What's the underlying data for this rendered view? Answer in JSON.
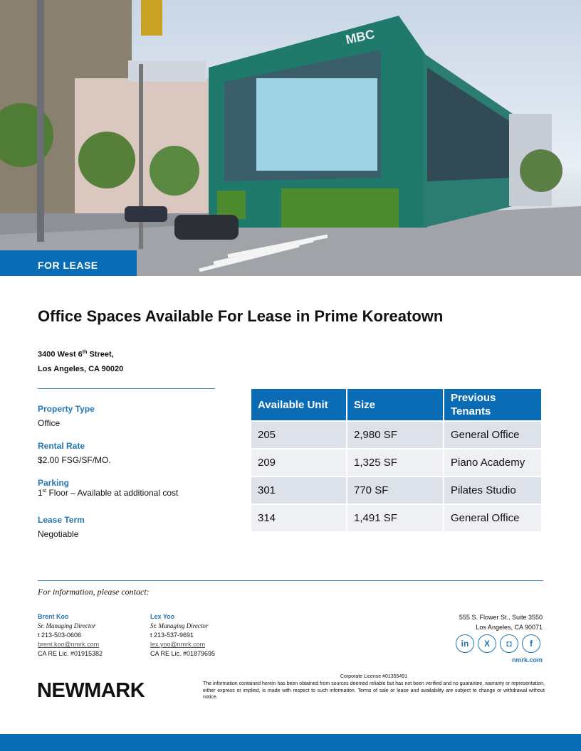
{
  "hero": {
    "tag": "FOR LEASE"
  },
  "title": "Office Spaces Available For Lease in Prime Koreatown",
  "address": {
    "line1_pre": "3400 West 6",
    "line1_sup": "th",
    "line1_post": " Street,",
    "line2": "Los Angeles, CA 90020"
  },
  "details": [
    {
      "label": "Property Type",
      "value": "Office"
    },
    {
      "label": "Rental Rate",
      "value": "$2.00 FSG/SF/MO."
    },
    {
      "label": "Parking",
      "value_pre": "1",
      "value_sup": "st",
      "value": " Floor – Available at additional cost"
    },
    {
      "label": "Lease Term",
      "value": "Negotiable"
    }
  ],
  "table": {
    "headers": [
      "Available Unit",
      "Size",
      "Previous Tenants"
    ],
    "rows": [
      [
        "205",
        "2,980 SF",
        "General Office"
      ],
      [
        "209",
        "1,325 SF",
        "Piano Academy"
      ],
      [
        "301",
        "770 SF",
        "Pilates Studio"
      ],
      [
        "314",
        "1,491 SF",
        "General Office"
      ]
    ]
  },
  "contact": {
    "heading": "For information, please contact:",
    "people": [
      {
        "name": "Brent Koo",
        "title": "Sr. Managing Director",
        "phone": "t  213-503-0606",
        "email": "brent.koo@nmrk.com",
        "license": "CA RE Lic. #01915382"
      },
      {
        "name": "Lex Yoo",
        "title": "Sr. Managing Director",
        "phone": "t  213-537-9691",
        "email": "lex.yoo@nmrk.com",
        "license": "CA RE Lic. #01879695"
      }
    ],
    "office": {
      "line1": "555 S. Flower St., Suite 3550",
      "line2": "Los Angeles, CA 90071",
      "website": "nmrk.com"
    },
    "social": [
      "in",
      "X",
      "◘",
      "f"
    ]
  },
  "footer": {
    "corporate_license": "Corporate License #01355491",
    "disclaimer": "The information contained herein has been obtained from sources deemed reliable but has not been verified and no guarantee, warranty or representation, either express or implied, is made with respect to such information. Terms of sale or lease and availability are subject to change or withdrawal without notice.",
    "logo": "NEWMARK"
  },
  "colors": {
    "brand": "#0a6cb5",
    "label": "#2477b3"
  }
}
